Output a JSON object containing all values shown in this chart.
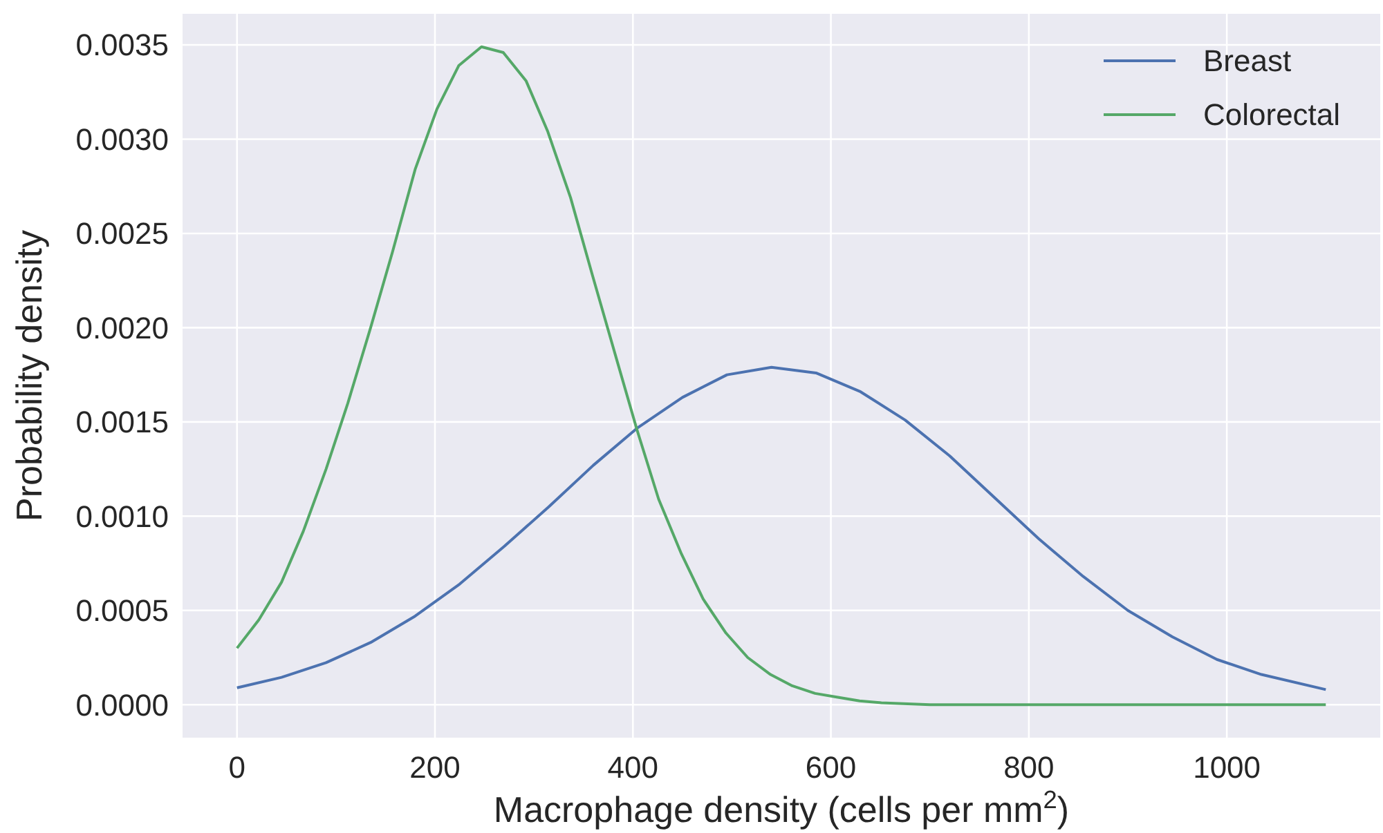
{
  "chart_data": {
    "type": "line",
    "xlabel": "Macrophage density (cells per mm$^{2}$)",
    "ylabel": "Probability density",
    "xlim": [
      -55,
      1155
    ],
    "ylim": [
      -0.000175,
      0.003665
    ],
    "xticks": [
      0,
      200,
      400,
      600,
      800,
      1000
    ],
    "yticks": [
      {
        "value": 0,
        "label": "0.0000"
      },
      {
        "value": 0.0005,
        "label": "0.0005"
      },
      {
        "value": 0.001,
        "label": "0.0010"
      },
      {
        "value": 0.0015,
        "label": "0.0015"
      },
      {
        "value": 0.002,
        "label": "0.0020"
      },
      {
        "value": 0.0025,
        "label": "0.0025"
      },
      {
        "value": 0.003,
        "label": "0.0030"
      },
      {
        "value": 0.0035,
        "label": "0.0035"
      }
    ],
    "grid": true,
    "legend": "top right",
    "marker": "none",
    "line_style": "solid",
    "series": [
      {
        "name": "Breast",
        "color": "#4c72b0",
        "x": [
          0,
          45,
          90,
          135,
          180,
          225,
          270,
          315,
          360,
          405,
          450,
          495,
          540,
          585,
          630,
          675,
          720,
          765,
          810,
          855,
          900,
          945,
          990,
          1035,
          1100
        ],
        "values": [
          9e-05,
          0.000145,
          0.000223,
          0.00033,
          0.00047,
          0.00064,
          0.00084,
          0.00105,
          0.00127,
          0.00147,
          0.00163,
          0.00175,
          0.00179,
          0.00176,
          0.00166,
          0.00151,
          0.00132,
          0.0011,
          0.00088,
          0.00068,
          0.0005,
          0.00036,
          0.00024,
          0.00016,
          8e-05
        ]
      },
      {
        "name": "Colorectal",
        "color": "#55a868",
        "x": [
          0,
          22,
          45,
          67,
          90,
          112,
          135,
          157,
          180,
          202,
          224,
          247,
          269,
          292,
          314,
          337,
          359,
          382,
          404,
          426,
          449,
          471,
          494,
          516,
          539,
          561,
          584,
          606,
          629,
          651,
          700,
          800,
          900,
          1000,
          1100
        ],
        "values": [
          0.0003,
          0.00045,
          0.00065,
          0.00092,
          0.00125,
          0.0016,
          0.002,
          0.0024,
          0.00284,
          0.00316,
          0.00339,
          0.00349,
          0.00346,
          0.00331,
          0.00304,
          0.00269,
          0.00228,
          0.00186,
          0.00146,
          0.00109,
          0.0008,
          0.00056,
          0.00038,
          0.00025,
          0.00016,
          0.0001,
          6e-05,
          4e-05,
          2e-05,
          1e-05,
          0,
          0,
          0,
          0,
          0
        ]
      }
    ]
  }
}
